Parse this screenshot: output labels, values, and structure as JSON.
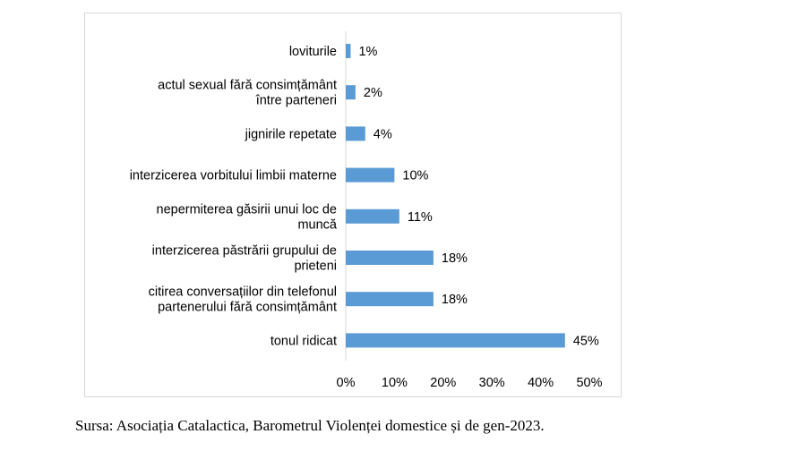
{
  "chart_data": {
    "type": "bar",
    "orientation": "horizontal",
    "categories": [
      [
        "loviturile"
      ],
      [
        "actul sexual fără consimțământ",
        "între parteneri"
      ],
      [
        "jignirile repetate"
      ],
      [
        "interzicerea vorbitului limbii materne"
      ],
      [
        "nepermiterea găsirii unui loc de",
        "muncă"
      ],
      [
        "interzicerea păstrării grupului de",
        "prieteni"
      ],
      [
        "citirea conversațiilor din telefonul",
        "partenerului fără consimțământ"
      ],
      [
        "tonul ridicat"
      ]
    ],
    "values": [
      1,
      2,
      4,
      10,
      11,
      18,
      18,
      45
    ],
    "value_labels": [
      "1%",
      "2%",
      "4%",
      "10%",
      "11%",
      "18%",
      "18%",
      "45%"
    ],
    "x_ticks": [
      "0%",
      "10%",
      "20%",
      "30%",
      "40%",
      "50%"
    ],
    "xlim": [
      0,
      50
    ],
    "unit": "%",
    "bar_color": "#5b9bd5",
    "grid": false,
    "legend": "none",
    "title": "",
    "xlabel": "",
    "ylabel": ""
  },
  "source_note": "Sursa: Asociația Catalactica, Barometrul Violenței domestice și de gen-2023."
}
